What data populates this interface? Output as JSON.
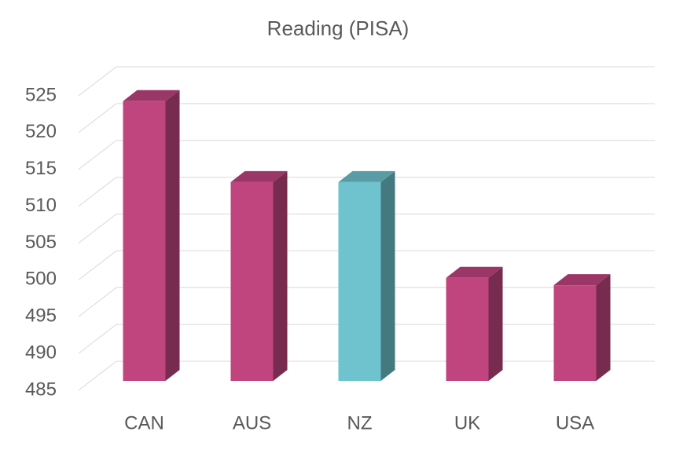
{
  "chart_data": {
    "type": "bar3d",
    "title": "Reading (PISA)",
    "categories": [
      "CAN",
      "AUS",
      "NZ",
      "UK",
      "USA"
    ],
    "values": [
      523,
      512,
      512,
      499,
      498
    ],
    "colors": [
      "#c0457f",
      "#c0457f",
      "#6fc3cf",
      "#c0457f",
      "#c0457f"
    ],
    "ylim": [
      485,
      525
    ],
    "yticks": [
      485,
      490,
      495,
      500,
      505,
      510,
      515,
      520,
      525
    ],
    "grid": true
  }
}
